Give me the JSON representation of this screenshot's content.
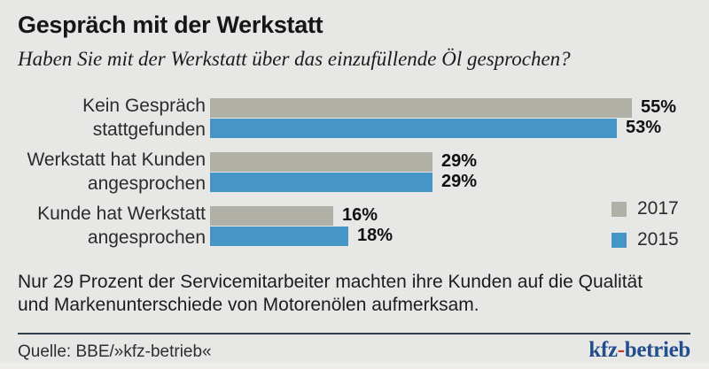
{
  "header": {
    "title": "Gespräch mit der Werkstatt",
    "subtitle": "Haben Sie mit der Werkstatt über das einzufüllende Öl gesprochen?"
  },
  "chart_data": {
    "type": "bar",
    "orientation": "horizontal",
    "title": "Gespräch mit der Werkstatt",
    "subtitle": "Haben Sie mit der Werkstatt über das einzufüllende Öl gesprochen?",
    "categories": [
      "Kein Gespräch stattgefunden",
      "Werkstatt hat Kunden angesprochen",
      "Kunde hat Werkstatt angesprochen"
    ],
    "category_lines": [
      [
        "Kein Gespräch",
        "stattgefunden"
      ],
      [
        "Werkstatt hat Kunden",
        "angesprochen"
      ],
      [
        "Kunde hat Werkstatt",
        "angesprochen"
      ]
    ],
    "series": [
      {
        "name": "2017",
        "color": "#b1b0a7",
        "values": [
          55,
          29,
          16
        ]
      },
      {
        "name": "2015",
        "color": "#4596c6",
        "values": [
          53,
          29,
          18
        ]
      }
    ],
    "value_suffix": "%",
    "xlim": [
      0,
      62
    ],
    "grid": false,
    "value_labels": true,
    "legend_position": "right-bottom"
  },
  "note_lines": [
    "Nur 29 Prozent der Servicemitarbeiter machten ihre Kunden auf die Qualität",
    "und Markenunterschiede von Motorenölen aufmerksam."
  ],
  "footer": {
    "source": "Quelle: BBE/»kfz-betrieb«",
    "logo_kfz": "kfz",
    "logo_hyphen": "-",
    "logo_betrieb": "betrieb"
  },
  "colors": {
    "background": "#e7e7e6",
    "bar_2017": "#b1b0a7",
    "bar_2015": "#4596c6",
    "divider": "#2e3e4b",
    "logo_blue": "#234e8d",
    "logo_red": "#c0392b"
  }
}
